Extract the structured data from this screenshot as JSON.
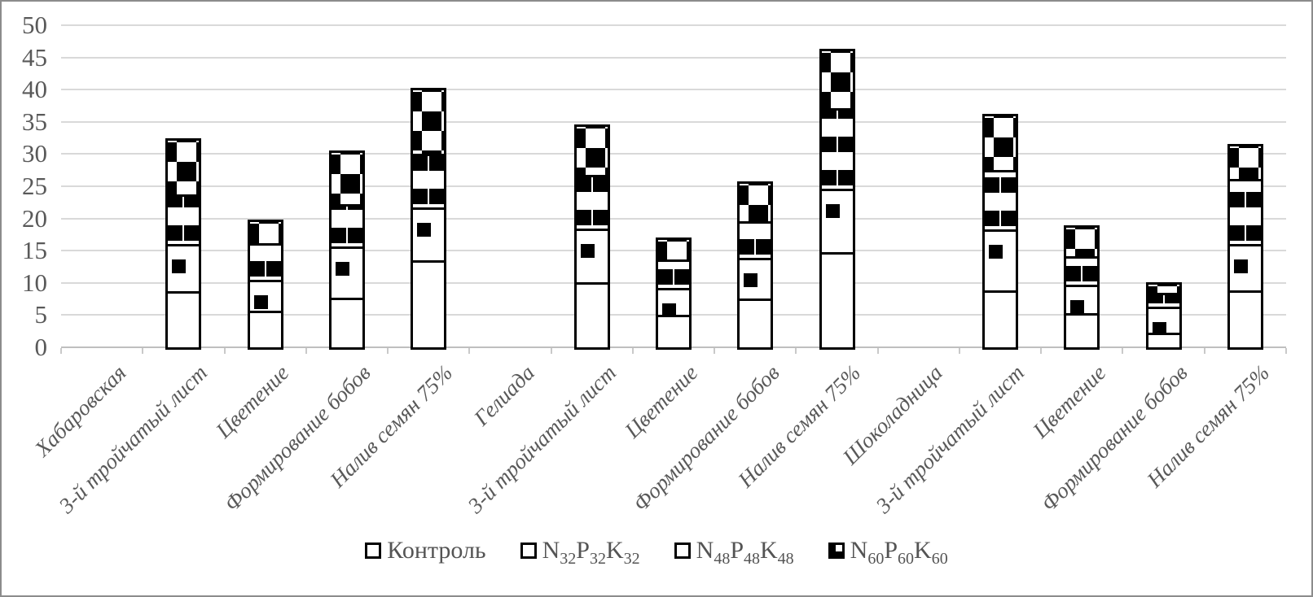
{
  "chart_data": {
    "type": "bar",
    "stacked": true,
    "title": "",
    "xlabel": "",
    "ylabel": "",
    "ylim": [
      0,
      50
    ],
    "ytick_step": 5,
    "grid": true,
    "legend_position": "bottom",
    "categories": [
      "Хабаровская",
      "3-й тройчатый лист",
      "Цветение",
      "Формирование бобов",
      "Налив семян 75%",
      "Гелиада",
      "3-й тройчатый лист",
      "Цветение",
      "Формирование бобов",
      "Налив семян 75%",
      "Шоколадница",
      "3-й тройчатый лист",
      "Цветение",
      "Формирование бобов",
      "Налив семян 75%"
    ],
    "series": [
      {
        "name": "Контроль",
        "key": "kontrol",
        "pattern": "plain",
        "label_parts": [
          [
            "Контроль",
            false
          ]
        ],
        "values": [
          0,
          8.3,
          5.3,
          7.3,
          13.1,
          0,
          9.7,
          4.7,
          7.2,
          14.4,
          0,
          8.5,
          4.9,
          1.9,
          8.4
        ]
      },
      {
        "name": "N32P32K32",
        "key": "n32",
        "pattern": "sparse",
        "label_parts": [
          [
            "N",
            false
          ],
          [
            "32",
            true
          ],
          [
            "P",
            false
          ],
          [
            "32",
            true
          ],
          [
            "K",
            false
          ],
          [
            "32",
            true
          ]
        ],
        "values": [
          0,
          7.3,
          4.8,
          8.0,
          8.3,
          0,
          8.3,
          4.2,
          6.3,
          9.8,
          0,
          9.4,
          4.4,
          4.0,
          7.2
        ]
      },
      {
        "name": "N48P48K48",
        "key": "n48",
        "pattern": "bands",
        "label_parts": [
          [
            "N",
            false
          ],
          [
            "48",
            true
          ],
          [
            "P",
            false
          ],
          [
            "48",
            true
          ],
          [
            "K",
            false
          ],
          [
            "48",
            true
          ]
        ],
        "values": [
          0,
          7.8,
          5.7,
          6.5,
          8.3,
          0,
          8.4,
          4.4,
          5.7,
          12.5,
          0,
          9.2,
          4.4,
          2.2,
          10.2
        ]
      },
      {
        "name": "N60P60K60",
        "key": "n60",
        "pattern": "checker",
        "label_parts": [
          [
            "N",
            false
          ],
          [
            "60",
            true
          ],
          [
            "P",
            false
          ],
          [
            "60",
            true
          ],
          [
            "K",
            false
          ],
          [
            "60",
            true
          ]
        ],
        "values": [
          0,
          8.7,
          3.7,
          8.4,
          10.2,
          0,
          7.8,
          3.4,
          6.2,
          9.2,
          0,
          8.7,
          4.9,
          1.6,
          5.4
        ]
      }
    ],
    "yticks": [
      0,
      5,
      10,
      15,
      20,
      25,
      30,
      35,
      40,
      45,
      50
    ]
  },
  "colors": {
    "axis_text": "#595959",
    "gridline": "#d9d9d9",
    "axis_line": "#bfbfbf",
    "bar_border": "#000000",
    "bar_fill": "#ffffff",
    "frame_border": "#8c8c8c"
  }
}
